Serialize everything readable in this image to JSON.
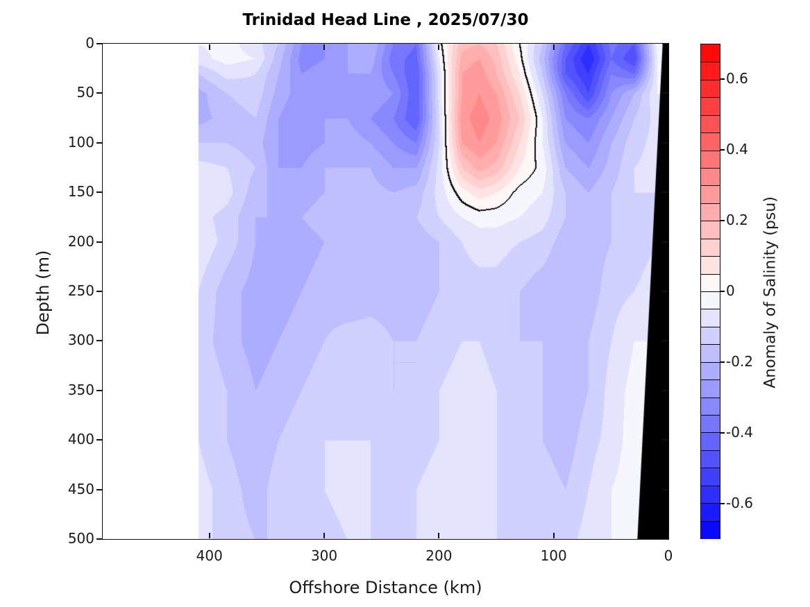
{
  "chart": {
    "title": "Trinidad Head Line , 2025/07/30",
    "xlabel": "Offshore Distance (km)",
    "ylabel": "Depth (m)",
    "colorbar_label": "Anomaly of Salinity (psu)"
  },
  "chart_data": {
    "type": "heatmap",
    "subtype": "filled-contour-section",
    "title": "Trinidad Head Line , 2025/07/30",
    "xlabel": "Offshore Distance (km)",
    "ylabel": "Depth (m)",
    "x_axis": {
      "ticks": [
        400,
        300,
        200,
        100,
        0
      ],
      "range": [
        493,
        0
      ],
      "reversed": true
    },
    "y_axis": {
      "ticks": [
        0,
        50,
        100,
        150,
        200,
        250,
        300,
        350,
        400,
        450,
        500
      ],
      "range": [
        0,
        500
      ],
      "reversed": true
    },
    "colorbar": {
      "label": "Anomaly of Salinity (psu)",
      "ticks": [
        0.6,
        0.4,
        0.2,
        0,
        -0.2,
        -0.4,
        -0.6
      ],
      "range": [
        -0.7,
        0.7
      ],
      "level_step": 0.05,
      "positive_color": "#ff0000",
      "negative_color": "#0000ff",
      "zero_color": "#ffffff",
      "outline_color": "#000000"
    },
    "zero_contour_line_color": "#000000",
    "no_data_color": "#ffffff",
    "bathymetry_color": "#000000",
    "data_extent_km": 410,
    "bathymetry_polygon_km_depth": [
      [
        5,
        0
      ],
      [
        27,
        500
      ],
      [
        0,
        500
      ],
      [
        0,
        0
      ]
    ],
    "grid_km": [
      410,
      385,
      360,
      340,
      320,
      300,
      280,
      260,
      240,
      220,
      200,
      180,
      165,
      150,
      130,
      110,
      90,
      70,
      50,
      30,
      10
    ],
    "grid_depth_m": [
      0,
      15,
      30,
      50,
      75,
      100,
      125,
      150,
      175,
      200,
      250,
      300,
      350,
      400,
      450,
      500
    ],
    "values_psu": [
      [
        -0.05,
        -0.03,
        -0.08,
        -0.15,
        -0.3,
        -0.3,
        -0.25,
        -0.2,
        -0.35,
        -0.4,
        -0.02,
        0.18,
        0.2,
        0.15,
        0.0,
        -0.15,
        -0.4,
        -0.55,
        -0.38,
        -0.45,
        -0.03
      ],
      [
        -0.07,
        -0.03,
        -0.05,
        -0.18,
        -0.32,
        -0.3,
        -0.25,
        -0.22,
        -0.38,
        -0.42,
        -0.05,
        0.22,
        0.25,
        0.18,
        0.02,
        -0.18,
        -0.45,
        -0.6,
        -0.4,
        -0.5,
        -0.05
      ],
      [
        -0.15,
        -0.08,
        -0.1,
        -0.2,
        -0.3,
        -0.28,
        -0.25,
        -0.25,
        -0.35,
        -0.45,
        -0.08,
        0.25,
        0.28,
        0.2,
        0.05,
        -0.15,
        -0.45,
        -0.55,
        -0.35,
        -0.4,
        -0.05
      ],
      [
        -0.22,
        -0.15,
        -0.12,
        -0.22,
        -0.28,
        -0.25,
        -0.28,
        -0.25,
        -0.3,
        -0.45,
        -0.08,
        0.25,
        0.3,
        0.25,
        0.1,
        -0.1,
        -0.35,
        -0.5,
        -0.3,
        -0.2,
        -0.05
      ],
      [
        -0.22,
        -0.18,
        -0.15,
        -0.25,
        -0.3,
        -0.25,
        -0.25,
        -0.3,
        -0.35,
        -0.45,
        -0.1,
        0.28,
        0.33,
        0.28,
        0.15,
        -0.05,
        -0.3,
        -0.35,
        -0.25,
        -0.15,
        -0.08
      ],
      [
        -0.15,
        -0.15,
        -0.18,
        -0.25,
        -0.28,
        -0.25,
        -0.22,
        -0.25,
        -0.3,
        -0.35,
        -0.1,
        0.25,
        0.3,
        0.25,
        0.1,
        -0.05,
        -0.25,
        -0.3,
        -0.2,
        -0.12,
        -0.08
      ],
      [
        -0.08,
        -0.1,
        -0.15,
        -0.25,
        -0.25,
        -0.2,
        -0.2,
        -0.2,
        -0.25,
        -0.25,
        -0.08,
        0.15,
        0.22,
        0.18,
        0.05,
        -0.02,
        -0.2,
        -0.25,
        -0.18,
        -0.1,
        -0.08
      ],
      [
        -0.05,
        -0.08,
        -0.18,
        -0.22,
        -0.22,
        -0.2,
        -0.18,
        -0.18,
        -0.2,
        -0.18,
        -0.08,
        0.03,
        0.08,
        0.05,
        -0.02,
        -0.05,
        -0.15,
        -0.2,
        -0.15,
        -0.1,
        -0.1
      ],
      [
        -0.08,
        -0.12,
        -0.2,
        -0.2,
        -0.2,
        -0.18,
        -0.18,
        -0.15,
        -0.15,
        -0.15,
        -0.1,
        -0.05,
        -0.03,
        -0.03,
        -0.05,
        -0.08,
        -0.15,
        -0.18,
        -0.15,
        -0.12,
        -0.1
      ],
      [
        -0.06,
        -0.12,
        -0.2,
        -0.22,
        -0.22,
        -0.2,
        -0.2,
        -0.2,
        -0.2,
        -0.18,
        -0.15,
        -0.1,
        -0.08,
        -0.08,
        -0.1,
        -0.12,
        -0.18,
        -0.18,
        -0.15,
        -0.12,
        -0.1
      ],
      [
        -0.1,
        -0.18,
        -0.22,
        -0.22,
        -0.2,
        -0.18,
        -0.2,
        -0.18,
        -0.18,
        -0.18,
        -0.15,
        -0.12,
        -0.12,
        -0.12,
        -0.15,
        -0.18,
        -0.2,
        -0.18,
        -0.12,
        -0.1,
        -0.08
      ],
      [
        -0.12,
        -0.18,
        -0.22,
        -0.2,
        -0.18,
        -0.15,
        -0.12,
        -0.12,
        -0.15,
        -0.15,
        -0.12,
        -0.1,
        -0.1,
        -0.12,
        -0.15,
        -0.15,
        -0.2,
        -0.15,
        -0.1,
        -0.05,
        -0.05
      ],
      [
        -0.1,
        -0.15,
        -0.2,
        -0.18,
        -0.15,
        -0.12,
        -0.1,
        -0.12,
        -0.15,
        -0.15,
        -0.1,
        -0.08,
        -0.08,
        -0.1,
        -0.12,
        -0.15,
        -0.2,
        -0.15,
        -0.08,
        -0.03,
        -0.03
      ],
      [
        -0.1,
        -0.15,
        -0.2,
        -0.15,
        -0.12,
        -0.1,
        -0.1,
        -0.1,
        -0.12,
        -0.12,
        -0.1,
        -0.08,
        -0.08,
        -0.1,
        -0.12,
        -0.15,
        -0.18,
        -0.12,
        -0.08,
        -0.02,
        -0.02
      ],
      [
        -0.08,
        -0.12,
        -0.18,
        -0.12,
        -0.1,
        -0.1,
        -0.08,
        -0.1,
        -0.12,
        -0.1,
        -0.08,
        -0.08,
        -0.08,
        -0.1,
        -0.12,
        -0.12,
        -0.15,
        -0.1,
        -0.05,
        -0.02,
        -0.02
      ],
      [
        -0.08,
        -0.12,
        -0.15,
        -0.15,
        -0.12,
        -0.12,
        -0.1,
        -0.1,
        -0.12,
        -0.1,
        -0.08,
        -0.08,
        -0.08,
        -0.1,
        -0.1,
        -0.12,
        -0.12,
        -0.08,
        -0.05,
        -0.02,
        -0.02
      ]
    ]
  }
}
